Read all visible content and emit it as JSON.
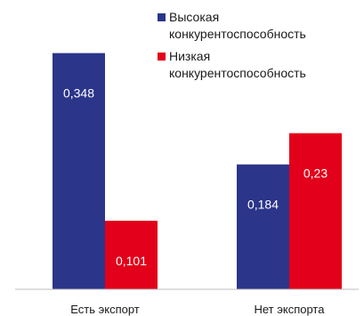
{
  "chart_data": {
    "type": "bar",
    "categories": [
      "Есть экспорт",
      "Нет экспорта"
    ],
    "series": [
      {
        "name": "Высокая конкурентоспособность",
        "legend_lines": [
          "Высокая",
          "конкурентоспособность"
        ],
        "color": "#2b3589",
        "values": [
          0.348,
          0.184
        ],
        "labels": [
          "0,348",
          "0,184"
        ]
      },
      {
        "name": "Низкая конкурентоспособность",
        "legend_lines": [
          "Низкая",
          "конкурентоспособность"
        ],
        "color": "#e2001a",
        "values": [
          0.101,
          0.23
        ],
        "labels": [
          "0,101",
          "0,23"
        ]
      }
    ],
    "ylim": [
      0,
      0.4
    ],
    "grid": false,
    "legend": "top-right"
  }
}
